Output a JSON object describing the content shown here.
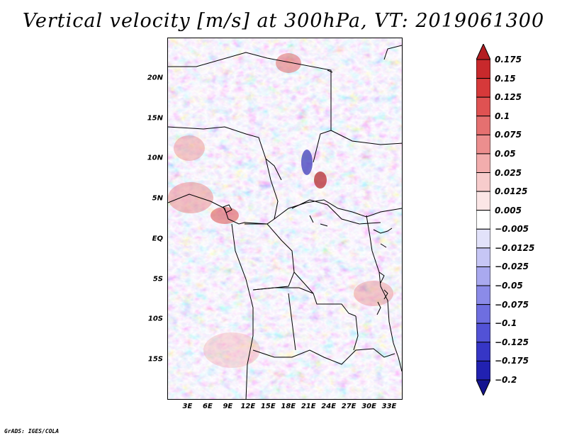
{
  "title": "Vertical velocity [m/s] at 300hPa, VT: 2019061300",
  "credit": "GrADS: IGES/COLA",
  "map": {
    "lat_labels": [
      "20N",
      "15N",
      "10N",
      "5N",
      "EQ",
      "5S",
      "10S",
      "15S"
    ],
    "lat_values": [
      20,
      15,
      10,
      5,
      0,
      -5,
      -10,
      -15
    ],
    "lon_labels": [
      "3E",
      "6E",
      "9E",
      "12E",
      "15E",
      "18E",
      "21E",
      "24E",
      "27E",
      "30E",
      "33E"
    ],
    "lon_values": [
      3,
      6,
      9,
      12,
      15,
      18,
      21,
      24,
      27,
      30,
      33
    ],
    "lon_range": [
      0,
      35
    ],
    "lat_range": [
      -20,
      25
    ]
  },
  "colorbar": {
    "labels": [
      "0.175",
      "0.15",
      "0.125",
      "0.1",
      "0.075",
      "0.05",
      "0.025",
      "0.0125",
      "0.005",
      "−0.005",
      "−0.0125",
      "−0.025",
      "−0.05",
      "−0.075",
      "−0.1",
      "−0.125",
      "−0.175",
      "−0.2"
    ],
    "colors": [
      "#b41e22",
      "#c8292c",
      "#d6393a",
      "#df5252",
      "#e57070",
      "#ec8e8e",
      "#f2adad",
      "#f7cccc",
      "#fbe6e6",
      "#ffffff",
      "#e2e2fa",
      "#c6c6f5",
      "#a9a9ef",
      "#8b8be8",
      "#6e6ee0",
      "#5252d6",
      "#3636c6",
      "#2121b1",
      "#14148f"
    ]
  },
  "colors": {
    "coastline": "#000000",
    "positive": "#e06a6a",
    "negative": "#6b6bdf"
  }
}
